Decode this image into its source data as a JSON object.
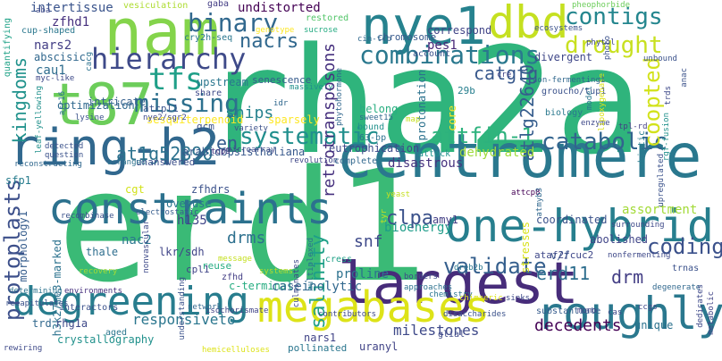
{
  "word_cloud": {
    "words": [
      {
        "text": "rha2a",
        "color": "#2fb47c"
      },
      {
        "text": "erd1",
        "color": "#3aba76"
      },
      {
        "text": "centromere",
        "color": "#2a788e"
      },
      {
        "text": "ring-h2",
        "color": "#31688e"
      },
      {
        "text": "largest",
        "color": "#472c7a"
      },
      {
        "text": "one-hybrid",
        "color": "#277f8e"
      },
      {
        "text": "nam",
        "color": "#84d44b"
      },
      {
        "text": "t87",
        "color": "#6ccd5a"
      },
      {
        "text": "nye1",
        "color": "#26828e"
      },
      {
        "text": "dbd",
        "color": "#c5e021"
      },
      {
        "text": "constraints",
        "color": "#2c718e"
      },
      {
        "text": "megabases",
        "color": "#dde318"
      },
      {
        "text": "roughly",
        "color": "#2a788e"
      },
      {
        "text": "degreening",
        "color": "#287d8e"
      },
      {
        "text": "hierarchy",
        "color": "#3e4a89"
      },
      {
        "text": "binary",
        "color": "#31688e"
      },
      {
        "text": "tfs",
        "color": "#1f9f88"
      },
      {
        "text": "contigs",
        "color": "#24868e"
      },
      {
        "text": "drought",
        "color": "#c8e020"
      },
      {
        "text": "combinations",
        "color": "#2a788e"
      },
      {
        "text": "nacrs",
        "color": "#31688e"
      },
      {
        "text": "missing",
        "color": "#2d708e"
      },
      {
        "text": "systematic",
        "color": "#218f8d"
      },
      {
        "text": "attfin-1",
        "color": "#2db27d"
      },
      {
        "text": "catabolic",
        "color": "#32648e"
      },
      {
        "text": "validate",
        "color": "#355f8d"
      },
      {
        "text": "protoplasts",
        "color": "#3c4f8a"
      },
      {
        "text": "kingdoms",
        "color": "#20928c"
      },
      {
        "text": "coopted",
        "color": "#d2e21b"
      },
      {
        "text": "salinity",
        "color": "#1fa088"
      },
      {
        "text": "coding",
        "color": "#3b518b"
      },
      {
        "text": "en",
        "color": "#365c8d"
      },
      {
        "text": "catgtg",
        "color": "#38588c"
      },
      {
        "text": "atlg22640",
        "color": "#365d8d"
      },
      {
        "text": "at1g52890",
        "color": "#2c728e"
      },
      {
        "text": "snips",
        "color": "#26828e"
      },
      {
        "text": "undistorted",
        "color": "#440154"
      },
      {
        "text": "intertissue",
        "color": "#3a548c"
      },
      {
        "text": "vesiculation",
        "color": "#addc30"
      },
      {
        "text": "zfhd1",
        "color": "#46307e"
      },
      {
        "text": "nars2",
        "color": "#433e85"
      },
      {
        "text": "cau1",
        "color": "#2e6d8e"
      },
      {
        "text": "pes1",
        "color": "#482878"
      },
      {
        "text": "correspond",
        "color": "#414487"
      },
      {
        "text": "chromosome",
        "color": "#38598c"
      },
      {
        "text": "cry2h-seq",
        "color": "#2a768e"
      },
      {
        "text": "restored",
        "color": "#52c569"
      },
      {
        "text": "gaba",
        "color": "#433d84"
      },
      {
        "text": "sucrose",
        "color": "#25ab82"
      },
      {
        "text": "divergent",
        "color": "#3f4788"
      },
      {
        "text": "ecosystems",
        "color": "#3b528b"
      },
      {
        "text": "pheophorbide",
        "color": "#6ccd5a"
      },
      {
        "text": "phytol",
        "color": "#3e4989"
      },
      {
        "text": "abscisic",
        "color": "#31688e"
      },
      {
        "text": "cup-shaped",
        "color": "#2a778e"
      },
      {
        "text": "quantifying",
        "color": "#1fa287"
      },
      {
        "text": "intricate",
        "color": "#355f8d"
      },
      {
        "text": "upstream",
        "color": "#2a768e"
      },
      {
        "text": "optimization",
        "color": "#30698e"
      },
      {
        "text": "senescence",
        "color": "#365c8d"
      },
      {
        "text": "massively",
        "color": "#21918c"
      },
      {
        "text": "sesquiterpenoid",
        "color": "#fde725"
      },
      {
        "text": "share",
        "color": "#3e4989"
      },
      {
        "text": "gcm",
        "color": "#3b528b"
      },
      {
        "text": "belong",
        "color": "#28ae80"
      },
      {
        "text": "protonation",
        "color": "#2c728e"
      },
      {
        "text": "bioenergy",
        "color": "#1e9c89"
      },
      {
        "text": "eutrophication",
        "color": "#3e4989"
      },
      {
        "text": "disastrous",
        "color": "#46337f"
      },
      {
        "text": "dehydrated",
        "color": "#9fda3a"
      },
      {
        "text": "clpa",
        "color": "#3b528b"
      },
      {
        "text": "amy1",
        "color": "#433e85"
      },
      {
        "text": "assortment",
        "color": "#a2da37"
      },
      {
        "text": "arabidopsisthaliana",
        "color": "#38598c"
      },
      {
        "text": "unanswered",
        "color": "#3c4f8a"
      },
      {
        "text": "atcpl1",
        "color": "#39558c"
      },
      {
        "text": "nye2/sgr2",
        "color": "#3f4889"
      },
      {
        "text": "sparsely",
        "color": "#fde725"
      },
      {
        "text": "bound",
        "color": "#21918c"
      },
      {
        "text": "63-bp",
        "color": "#2c728e"
      },
      {
        "text": "29b",
        "color": "#277f8e"
      },
      {
        "text": "groucho/tup1",
        "color": "#3b528b"
      },
      {
        "text": "biology",
        "color": "#2a788e"
      },
      {
        "text": "abiotic",
        "color": "#287d8e"
      },
      {
        "text": "tpl-rd",
        "color": "#433e85"
      },
      {
        "text": "account",
        "color": "#3b528b"
      },
      {
        "text": "microarray",
        "color": "#3e4989"
      },
      {
        "text": "variety",
        "color": "#3b518b"
      },
      {
        "text": "tcp9",
        "color": "#46307e"
      },
      {
        "text": "revolution",
        "color": "#3f4788"
      },
      {
        "text": "complete",
        "color": "#31688e"
      },
      {
        "text": "attack",
        "color": "#20928c"
      },
      {
        "text": "sfp1",
        "color": "#287d8e"
      },
      {
        "text": "h135",
        "color": "#404588"
      },
      {
        "text": "lkr/sdh",
        "color": "#404588"
      },
      {
        "text": "zfhdrs",
        "color": "#3b528b"
      },
      {
        "text": "cgt",
        "color": "#d2e21b"
      },
      {
        "text": "overuse",
        "color": "#2a768e"
      },
      {
        "text": "drms",
        "color": "#2d708e"
      },
      {
        "text": "reuse",
        "color": "#26ad81"
      },
      {
        "text": "nac2",
        "color": "#2a778e"
      },
      {
        "text": "thale",
        "color": "#2e6e8e"
      },
      {
        "text": "cpl1",
        "color": "#404588"
      },
      {
        "text": "zfhd",
        "color": "#433e85"
      },
      {
        "text": "h3k27me3-marked",
        "color": "#2c728e"
      },
      {
        "text": "morphology1",
        "color": "#365d8d"
      },
      {
        "text": "c-terminal",
        "color": "#27ad81"
      },
      {
        "text": "recombinase",
        "color": "#3b528b"
      },
      {
        "text": "electrostatic",
        "color": "#365d8d"
      },
      {
        "text": "proline",
        "color": "#2c718e"
      },
      {
        "text": "cress",
        "color": "#1fa187"
      },
      {
        "text": "snf",
        "color": "#3e4989"
      },
      {
        "text": "caseinolytic",
        "color": "#31688e"
      },
      {
        "text": "erd11",
        "color": "#2e6e8e"
      },
      {
        "text": "drm",
        "color": "#433e85"
      },
      {
        "text": "coordinated",
        "color": "#3b528b"
      },
      {
        "text": "abolished",
        "color": "#404588"
      },
      {
        "text": "ataf2/cuc2",
        "color": "#3f4889"
      },
      {
        "text": "surrounding",
        "color": "#3e4989"
      },
      {
        "text": "nonfermenting",
        "color": "#3e4989"
      },
      {
        "text": "degenerate",
        "color": "#31688e"
      },
      {
        "text": "trnas",
        "color": "#3b528b"
      },
      {
        "text": "responsiveto",
        "color": "#2a768e"
      },
      {
        "text": "milestones",
        "color": "#3e4989"
      },
      {
        "text": "decedents",
        "color": "#440154"
      },
      {
        "text": "unique",
        "color": "#2c728e"
      },
      {
        "text": "rhg1a",
        "color": "#3e4989"
      },
      {
        "text": "crystallography",
        "color": "#21918c"
      },
      {
        "text": "trd",
        "color": "#31688e"
      },
      {
        "text": "aged",
        "color": "#2a768e"
      },
      {
        "text": "nars1",
        "color": "#414487"
      },
      {
        "text": "pollinated",
        "color": "#2a768e"
      },
      {
        "text": "uranyl",
        "color": "#414487"
      },
      {
        "text": "glial",
        "color": "#3e4989"
      },
      {
        "text": "interactors",
        "color": "#3b528b"
      },
      {
        "text": "environments",
        "color": "#46307e"
      },
      {
        "text": "isochorismate",
        "color": "#414487"
      },
      {
        "text": "contributors",
        "color": "#3e4989"
      },
      {
        "text": "disaccharides",
        "color": "#3b528b"
      },
      {
        "text": "substantiate",
        "color": "#365c8d"
      },
      {
        "text": "mono",
        "color": "#414487"
      },
      {
        "text": "cas",
        "color": "#3e4989"
      },
      {
        "text": "ccgs",
        "color": "#3f4788"
      },
      {
        "text": "chemistry",
        "color": "#2a768e"
      },
      {
        "text": "approaches",
        "color": "#2c728e"
      },
      {
        "text": "borders",
        "color": "#3e4989"
      },
      {
        "text": "sinks",
        "color": "#3e4989"
      },
      {
        "text": "dreb2b",
        "color": "#2a768e"
      },
      {
        "text": "recovery",
        "color": "#a2da37"
      },
      {
        "text": "systems",
        "color": "#b5de2b"
      },
      {
        "text": "message",
        "color": "#c5e021"
      },
      {
        "text": "yeast",
        "color": "#c5e021"
      },
      {
        "text": "v/f",
        "color": "#3b528b"
      },
      {
        "text": "attcp8",
        "color": "#440154"
      },
      {
        "text": "atmyb3",
        "color": "#31688e"
      },
      {
        "text": "retrotransposons",
        "color": "#46307e"
      },
      {
        "text": "stresses",
        "color": "#d8e219"
      },
      {
        "text": "core",
        "color": "#fde725"
      },
      {
        "text": "tyr",
        "color": "#c5e021"
      },
      {
        "text": "detected",
        "color": "#3b528b"
      },
      {
        "text": "question",
        "color": "#3b528b"
      },
      {
        "text": "arranged",
        "color": "#2c728e"
      },
      {
        "text": "reconstructing",
        "color": "#31688e"
      },
      {
        "text": "lysine",
        "color": "#3b528b"
      },
      {
        "text": "leaf-yellowing",
        "color": "#21918c"
      },
      {
        "text": "multiplexed",
        "color": "#2c728e"
      },
      {
        "text": "culminates",
        "color": "#3e4989"
      },
      {
        "text": "network",
        "color": "#31688e"
      },
      {
        "text": "recapitulates",
        "color": "#3b528b"
      },
      {
        "text": "nonvascular",
        "color": "#3e4989"
      },
      {
        "text": "understanding",
        "color": "#3b528b"
      },
      {
        "text": "determining",
        "color": "#2c728e"
      },
      {
        "text": "rewiring",
        "color": "#3e4989"
      },
      {
        "text": "hemicelluloses",
        "color": "#dde318"
      },
      {
        "text": "chimaeric",
        "color": "#dde318"
      },
      {
        "text": "cre",
        "color": "#414487"
      },
      {
        "text": "cin-tcp",
        "color": "#31688e"
      },
      {
        "text": "phytohormone",
        "color": "#31688e"
      },
      {
        "text": "sweet15",
        "color": "#31688e"
      },
      {
        "text": "map",
        "color": "#c5e021"
      },
      {
        "text": "enzyme",
        "color": "#3e4989"
      },
      {
        "text": "model",
        "color": "#2a768e"
      },
      {
        "text": "lipoxygenase",
        "color": "#dde318"
      },
      {
        "text": "trds",
        "color": "#3e4989"
      },
      {
        "text": "photo",
        "color": "#3b528b"
      },
      {
        "text": "non-fermenting1",
        "color": "#31688e"
      },
      {
        "text": "rgf-fusion",
        "color": "#21918c"
      },
      {
        "text": "upregulated",
        "color": "#3b528b"
      },
      {
        "text": "anac",
        "color": "#3b528b"
      },
      {
        "text": "dedicates",
        "color": "#3e4989"
      },
      {
        "text": "metabolic",
        "color": "#414487"
      },
      {
        "text": "unbound",
        "color": "#3b528b"
      },
      {
        "text": "aba",
        "color": "#3e4989"
      },
      {
        "text": "myc-like",
        "color": "#3e4989"
      },
      {
        "text": "cacg",
        "color": "#2c728e"
      },
      {
        "text": "genotype",
        "color": "#fde725"
      },
      {
        "text": "idr",
        "color": "#31688e"
      },
      {
        "text": "arr16",
        "color": "#2c728e"
      }
    ]
  }
}
